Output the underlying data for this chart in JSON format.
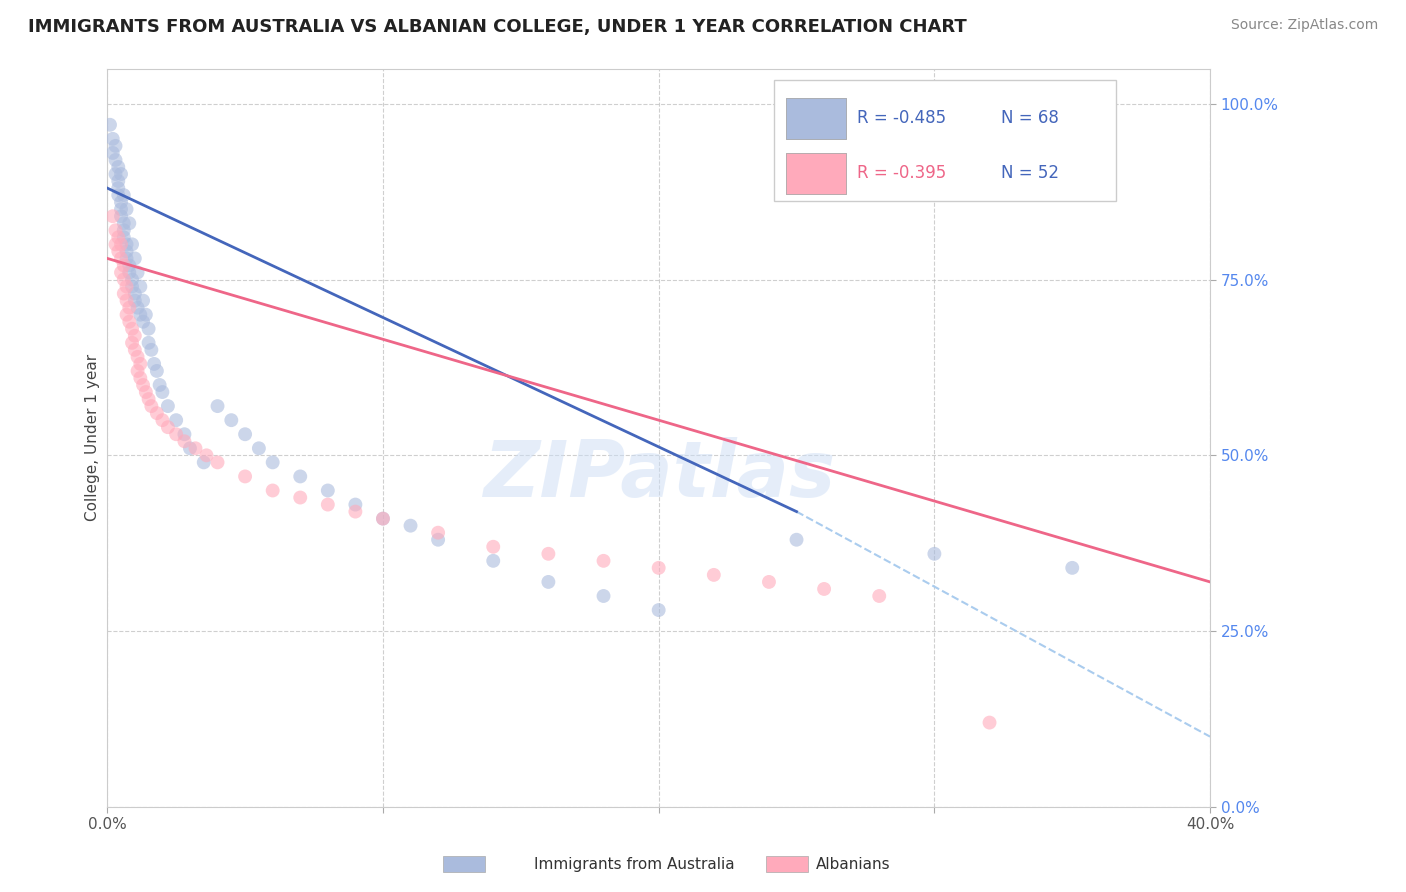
{
  "title": "IMMIGRANTS FROM AUSTRALIA VS ALBANIAN COLLEGE, UNDER 1 YEAR CORRELATION CHART",
  "source": "Source: ZipAtlas.com",
  "ylabel": "College, Under 1 year",
  "watermark": "ZIPatlas",
  "legend_blue_r": "R = -0.485",
  "legend_blue_n": "N = 68",
  "legend_pink_r": "R = -0.395",
  "legend_pink_n": "N = 52",
  "xlim": [
    0.0,
    0.4
  ],
  "ylim": [
    0.0,
    1.05
  ],
  "yticks": [
    0.0,
    0.25,
    0.5,
    0.75,
    1.0
  ],
  "ytick_labels": [
    "0.0%",
    "25.0%",
    "50.0%",
    "75.0%",
    "100.0%"
  ],
  "xtick_labels": [
    "0.0%",
    "",
    "",
    "",
    "40.0%"
  ],
  "grid_color": "#bbbbbb",
  "bg_color": "#ffffff",
  "blue_color": "#aabbdd",
  "pink_color": "#ffaabb",
  "blue_line_color": "#4466bb",
  "pink_line_color": "#ee6688",
  "legend_label_blue": "Immigrants from Australia",
  "legend_label_pink": "Albanians",
  "blue_r_color": "#4466bb",
  "pink_r_color": "#ee6688",
  "n_color": "#4466bb",
  "blue_points_x": [
    0.001,
    0.002,
    0.002,
    0.003,
    0.003,
    0.003,
    0.004,
    0.004,
    0.004,
    0.004,
    0.005,
    0.005,
    0.005,
    0.005,
    0.006,
    0.006,
    0.006,
    0.006,
    0.007,
    0.007,
    0.007,
    0.007,
    0.008,
    0.008,
    0.008,
    0.009,
    0.009,
    0.009,
    0.01,
    0.01,
    0.01,
    0.011,
    0.011,
    0.012,
    0.012,
    0.013,
    0.013,
    0.014,
    0.015,
    0.015,
    0.016,
    0.017,
    0.018,
    0.019,
    0.02,
    0.022,
    0.025,
    0.028,
    0.03,
    0.035,
    0.04,
    0.045,
    0.05,
    0.055,
    0.06,
    0.07,
    0.08,
    0.09,
    0.1,
    0.11,
    0.12,
    0.14,
    0.16,
    0.18,
    0.2,
    0.25,
    0.3,
    0.35
  ],
  "blue_points_y": [
    0.97,
    0.95,
    0.93,
    0.94,
    0.92,
    0.9,
    0.91,
    0.89,
    0.88,
    0.87,
    0.9,
    0.86,
    0.85,
    0.84,
    0.87,
    0.83,
    0.82,
    0.81,
    0.85,
    0.8,
    0.79,
    0.78,
    0.83,
    0.77,
    0.76,
    0.8,
    0.75,
    0.74,
    0.78,
    0.73,
    0.72,
    0.76,
    0.71,
    0.74,
    0.7,
    0.72,
    0.69,
    0.7,
    0.68,
    0.66,
    0.65,
    0.63,
    0.62,
    0.6,
    0.59,
    0.57,
    0.55,
    0.53,
    0.51,
    0.49,
    0.57,
    0.55,
    0.53,
    0.51,
    0.49,
    0.47,
    0.45,
    0.43,
    0.41,
    0.4,
    0.38,
    0.35,
    0.32,
    0.3,
    0.28,
    0.38,
    0.36,
    0.34
  ],
  "pink_points_x": [
    0.002,
    0.003,
    0.003,
    0.004,
    0.004,
    0.005,
    0.005,
    0.005,
    0.006,
    0.006,
    0.006,
    0.007,
    0.007,
    0.007,
    0.008,
    0.008,
    0.009,
    0.009,
    0.01,
    0.01,
    0.011,
    0.011,
    0.012,
    0.012,
    0.013,
    0.014,
    0.015,
    0.016,
    0.018,
    0.02,
    0.022,
    0.025,
    0.028,
    0.032,
    0.036,
    0.04,
    0.05,
    0.06,
    0.07,
    0.08,
    0.09,
    0.1,
    0.12,
    0.14,
    0.16,
    0.18,
    0.2,
    0.22,
    0.24,
    0.26,
    0.28,
    0.32
  ],
  "pink_points_y": [
    0.84,
    0.82,
    0.8,
    0.81,
    0.79,
    0.8,
    0.78,
    0.76,
    0.77,
    0.75,
    0.73,
    0.74,
    0.72,
    0.7,
    0.71,
    0.69,
    0.68,
    0.66,
    0.67,
    0.65,
    0.64,
    0.62,
    0.63,
    0.61,
    0.6,
    0.59,
    0.58,
    0.57,
    0.56,
    0.55,
    0.54,
    0.53,
    0.52,
    0.51,
    0.5,
    0.49,
    0.47,
    0.45,
    0.44,
    0.43,
    0.42,
    0.41,
    0.39,
    0.37,
    0.36,
    0.35,
    0.34,
    0.33,
    0.32,
    0.31,
    0.3,
    0.12
  ],
  "blue_line_x": [
    0.0,
    0.25
  ],
  "blue_line_y": [
    0.88,
    0.42
  ],
  "pink_line_x": [
    0.0,
    0.4
  ],
  "pink_line_y": [
    0.78,
    0.32
  ],
  "dashed_line_x": [
    0.25,
    0.4
  ],
  "dashed_line_y": [
    0.42,
    0.1
  ]
}
